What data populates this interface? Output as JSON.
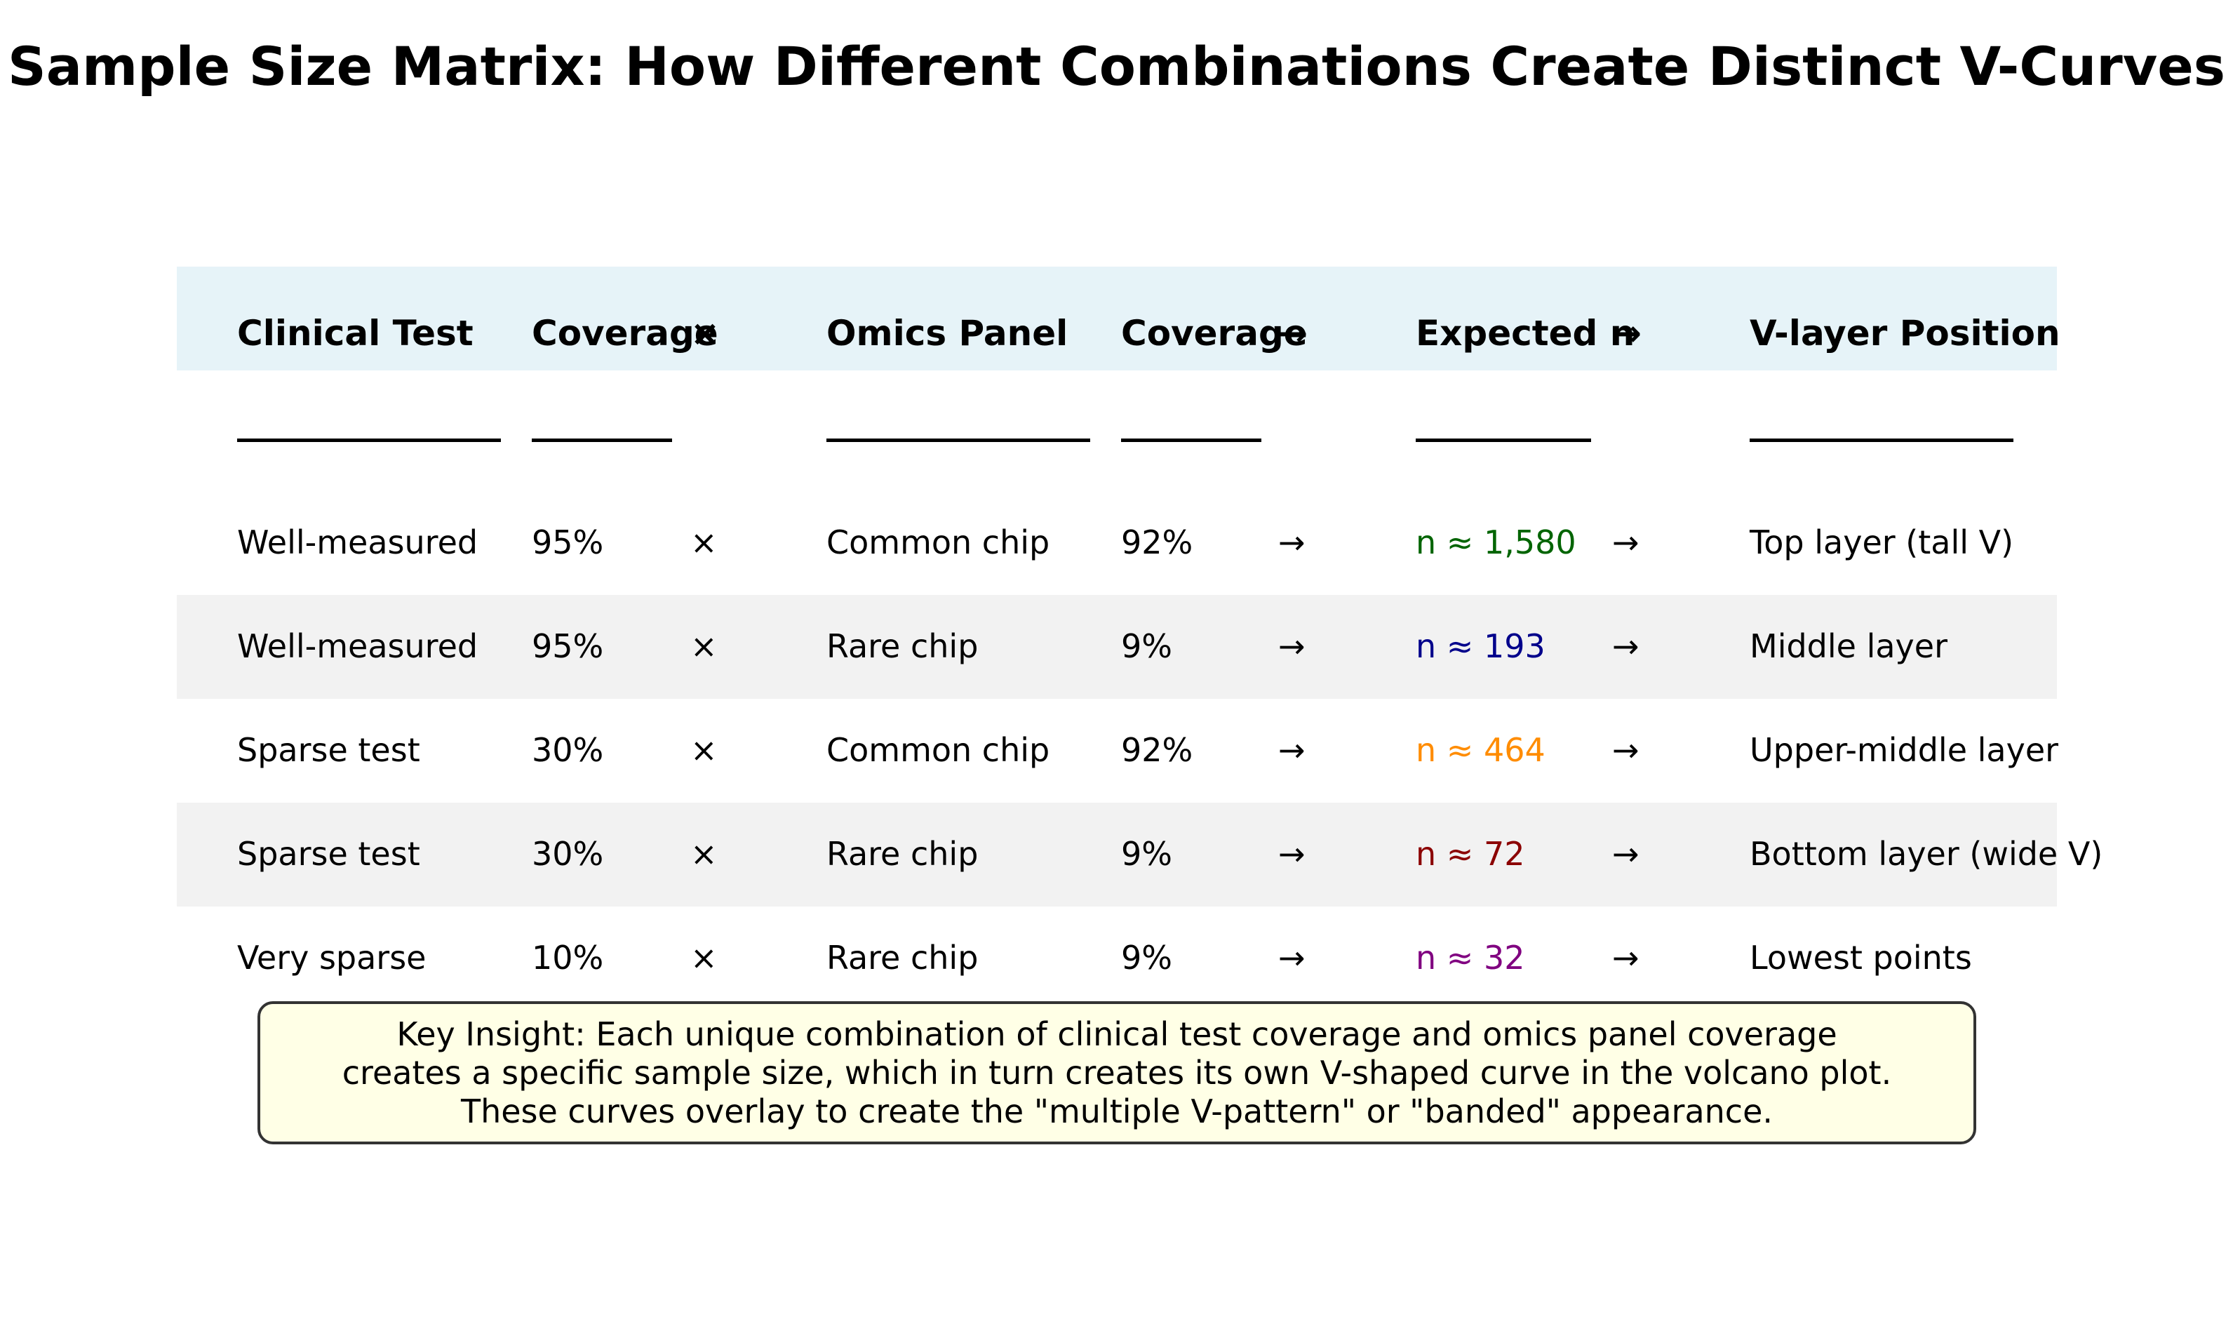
{
  "title": "Sample Size Matrix: How Different Combinations Create Distinct V-Curves",
  "chart_data": {
    "type": "table",
    "header_background": "#e6f3f8",
    "stripe_background": "#f2f2f2",
    "columns": [
      "Clinical Test",
      "Coverage",
      "×",
      "Omics Panel",
      "Coverage",
      "→",
      "Expected n",
      "→",
      "V-layer Position"
    ],
    "rows": [
      {
        "clinical_test": "Well-measured",
        "clinical_coverage": "95%",
        "op": "×",
        "omics_panel": "Common chip",
        "omics_coverage": "92%",
        "arrow1": "→",
        "expected_n": "n ≈ 1,580",
        "arrow2": "→",
        "v_layer": "Top layer (tall V)",
        "n_color": "#006400"
      },
      {
        "clinical_test": "Well-measured",
        "clinical_coverage": "95%",
        "op": "×",
        "omics_panel": "Rare chip",
        "omics_coverage": "9%",
        "arrow1": "→",
        "expected_n": "n ≈ 193",
        "arrow2": "→",
        "v_layer": "Middle layer",
        "n_color": "#00008b"
      },
      {
        "clinical_test": "Sparse test",
        "clinical_coverage": "30%",
        "op": "×",
        "omics_panel": "Common chip",
        "omics_coverage": "92%",
        "arrow1": "→",
        "expected_n": "n ≈ 464",
        "arrow2": "→",
        "v_layer": "Upper-middle layer",
        "n_color": "#ff8c00"
      },
      {
        "clinical_test": "Sparse test",
        "clinical_coverage": "30%",
        "op": "×",
        "omics_panel": "Rare chip",
        "omics_coverage": "9%",
        "arrow1": "→",
        "expected_n": "n ≈ 72",
        "arrow2": "→",
        "v_layer": "Bottom layer (wide V)",
        "n_color": "#8b0000"
      },
      {
        "clinical_test": "Very sparse",
        "clinical_coverage": "10%",
        "op": "×",
        "omics_panel": "Rare chip",
        "omics_coverage": "9%",
        "arrow1": "→",
        "expected_n": "n ≈ 32",
        "arrow2": "→",
        "v_layer": "Lowest points",
        "n_color": "#800080"
      }
    ]
  },
  "insight": {
    "lines": [
      "Key Insight: Each unique combination of clinical test coverage and omics panel coverage",
      "creates a specific sample size, which in turn creates its own V-shaped curve in the volcano plot.",
      "These curves overlay to create the \"multiple V-pattern\" or \"banded\" appearance."
    ],
    "background": "#ffffe6"
  }
}
